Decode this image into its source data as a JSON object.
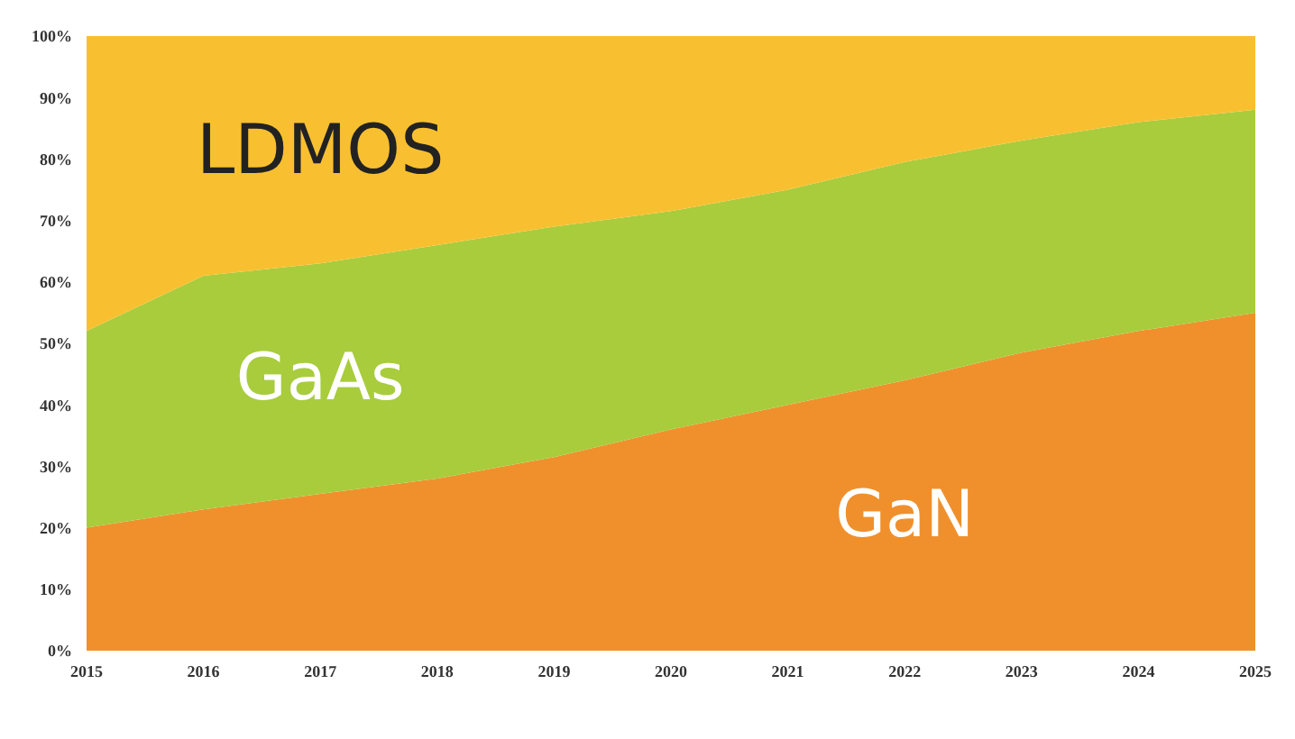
{
  "chart_data": {
    "type": "area",
    "stacked": true,
    "x": [
      2015,
      2016,
      2017,
      2018,
      2019,
      2020,
      2021,
      2022,
      2023,
      2024,
      2025
    ],
    "xlim": [
      2015,
      2025
    ],
    "xticks": [
      2015,
      2016,
      2017,
      2018,
      2019,
      2020,
      2021,
      2022,
      2023,
      2024,
      2025
    ],
    "ylim": [
      0,
      100
    ],
    "yticks": [
      {
        "value": 0,
        "label": "0%"
      },
      {
        "value": 10,
        "label": "10%"
      },
      {
        "value": 20,
        "label": "20%"
      },
      {
        "value": 30,
        "label": "30%"
      },
      {
        "value": 40,
        "label": "40%"
      },
      {
        "value": 50,
        "label": "50%"
      },
      {
        "value": 60,
        "label": "60%"
      },
      {
        "value": 70,
        "label": "70%"
      },
      {
        "value": 80,
        "label": "80%"
      },
      {
        "value": 90,
        "label": "90%"
      },
      {
        "value": 100,
        "label": "100%"
      }
    ],
    "grid": false,
    "legend": false,
    "series": [
      {
        "name": "GaN",
        "color": "#f0902c",
        "values": [
          20,
          23,
          25.5,
          28,
          31.5,
          36,
          40,
          44,
          48.5,
          52,
          55
        ]
      },
      {
        "name": "GaAs",
        "color": "#a8cc3c",
        "values": [
          32,
          38,
          37.5,
          38,
          37.5,
          35.5,
          35,
          35.5,
          34.5,
          34,
          33
        ]
      },
      {
        "name": "LDMOS",
        "color": "#f8c030",
        "values": [
          48,
          39,
          37,
          34,
          31,
          28.5,
          25,
          20.5,
          17,
          14,
          12
        ]
      }
    ]
  }
}
